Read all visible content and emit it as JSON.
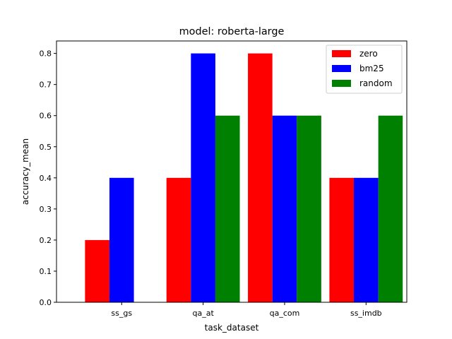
{
  "chart_data": {
    "type": "bar",
    "title": "model: roberta-large",
    "xlabel": "task_dataset",
    "ylabel": "accuracy_mean",
    "categories": [
      "ss_gs",
      "qa_at",
      "qa_com",
      "ss_imdb"
    ],
    "series": [
      {
        "name": "zero",
        "color": "#ff0000",
        "values": [
          0.2,
          0.4,
          0.8,
          0.4
        ]
      },
      {
        "name": "bm25",
        "color": "#0000ff",
        "values": [
          0.4,
          0.8,
          0.6,
          0.4
        ]
      },
      {
        "name": "random",
        "color": "#008000",
        "values": [
          0.0,
          0.6,
          0.6,
          0.6
        ]
      }
    ],
    "ylim": [
      0,
      0.84
    ],
    "yticks": [
      "0.0",
      "0.1",
      "0.2",
      "0.3",
      "0.4",
      "0.5",
      "0.6",
      "0.7",
      "0.8"
    ],
    "grid": false,
    "legend_position": "top-right"
  }
}
